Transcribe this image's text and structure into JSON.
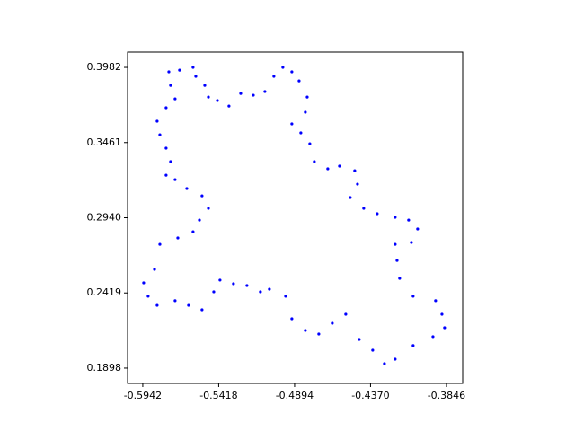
{
  "chart_data": {
    "type": "scatter",
    "color": "#0000ff",
    "xlim": [
      -0.6047,
      -0.3734
    ],
    "ylim": [
      0.1792,
      0.4088
    ],
    "xticks": [
      -0.5942,
      -0.5418,
      -0.4894,
      {
        "value": -0.437,
        "label": "-0.4370"
      },
      -0.3846
    ],
    "yticks": [
      0.1898,
      0.2419,
      {
        "value": 0.294,
        "label": "0.2940"
      },
      0.3461,
      0.3982
    ],
    "x": [
      -0.5762,
      -0.5688,
      -0.5595,
      -0.5576,
      -0.5514,
      -0.5489,
      -0.5427,
      -0.5347,
      -0.5266,
      -0.5179,
      -0.5099,
      -0.5037,
      -0.4975,
      -0.4913,
      -0.4863,
      -0.4807,
      -0.482,
      -0.4913,
      -0.4851,
      -0.4789,
      -0.4758,
      -0.4665,
      -0.4584,
      -0.4479,
      -0.446,
      -0.451,
      -0.4417,
      -0.4324,
      -0.42,
      -0.4107,
      -0.4045,
      -0.4088,
      -0.42,
      -0.4187,
      -0.4169,
      -0.4076,
      -0.3921,
      -0.3877,
      -0.3859,
      -0.3939,
      -0.4076,
      -0.42,
      -0.4274,
      -0.4355,
      -0.4448,
      -0.4541,
      -0.4634,
      -0.4727,
      -0.482,
      -0.4913,
      -0.4956,
      -0.5068,
      -0.513,
      -0.5223,
      -0.5316,
      -0.5409,
      -0.5452,
      -0.5533,
      -0.5626,
      -0.5719,
      -0.5843,
      -0.5905,
      -0.5936,
      -0.5861,
      -0.5824,
      -0.57,
      -0.5595,
      -0.5551,
      -0.5489,
      -0.5533,
      -0.5638,
      -0.5719,
      -0.5781,
      -0.575,
      -0.5781,
      -0.5824,
      -0.5843,
      -0.5781,
      -0.5719,
      -0.575
    ],
    "y": [
      0.3951,
      0.3963,
      0.3982,
      0.392,
      0.3857,
      0.3776,
      0.3752,
      0.3714,
      0.3801,
      0.3789,
      0.3814,
      0.392,
      0.3982,
      0.3951,
      0.3888,
      0.3776,
      0.3671,
      0.359,
      0.3528,
      0.3453,
      0.3329,
      0.3279,
      0.3298,
      0.3266,
      0.3173,
      0.308,
      0.3005,
      0.2968,
      0.2943,
      0.2924,
      0.2862,
      0.2769,
      0.2756,
      0.2644,
      0.252,
      0.2396,
      0.2365,
      0.2271,
      0.2178,
      0.2116,
      0.2054,
      0.196,
      0.1929,
      0.2022,
      0.2097,
      0.2271,
      0.2209,
      0.2134,
      0.2159,
      0.224,
      0.2396,
      0.2445,
      0.2427,
      0.247,
      0.2483,
      0.2508,
      0.2427,
      0.2302,
      0.2333,
      0.2365,
      0.2333,
      0.2396,
      0.2489,
      0.2582,
      0.2756,
      0.28,
      0.2843,
      0.2924,
      0.3005,
      0.3092,
      0.3142,
      0.3204,
      0.3235,
      0.3329,
      0.3422,
      0.3515,
      0.3609,
      0.3702,
      0.3764,
      0.3857
    ]
  }
}
